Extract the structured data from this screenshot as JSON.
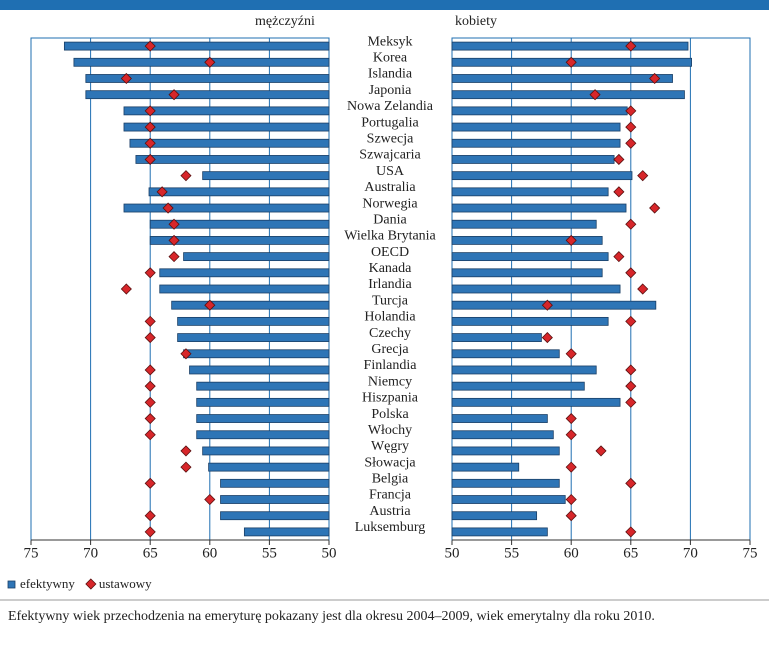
{
  "chart_data": {
    "type": "bar",
    "categories": [
      "Meksyk",
      "Korea",
      "Islandia",
      "Japonia",
      "Nowa Zelandia",
      "Portugalia",
      "Szwecja",
      "Szwajcaria",
      "USA",
      "Australia",
      "Norwegia",
      "Dania",
      "Wielka Brytania",
      "OECD",
      "Kanada",
      "Irlandia",
      "Turcja",
      "Holandia",
      "Czechy",
      "Grecja",
      "Finlandia",
      "Niemcy",
      "Hiszpania",
      "Polska",
      "Włochy",
      "Węgry",
      "Słowacja",
      "Belgia",
      "Francja",
      "Austria",
      "Luksemburg"
    ],
    "grid": true,
    "panels": [
      {
        "title": "mężczyźni",
        "xlim": [
          75,
          50
        ],
        "xticks": [
          75,
          70,
          65,
          60,
          55,
          50
        ],
        "series": [
          {
            "name": "efektywny",
            "color": "#2e75b6",
            "marker": "bar",
            "values": [
              72.2,
              71.4,
              70.4,
              70.4,
              67.2,
              67.2,
              66.7,
              66.2,
              60.6,
              65.1,
              67.2,
              65,
              65,
              62.2,
              64.2,
              64.2,
              63.2,
              62.7,
              62.7,
              62.2,
              61.7,
              61.1,
              61.1,
              61.1,
              61.1,
              60.6,
              60.1,
              59.1,
              59.1,
              59.1,
              57.1
            ]
          },
          {
            "name": "ustawowy",
            "color": "#d7262a",
            "marker": "diamond",
            "values": [
              65,
              60,
              67,
              63,
              65,
              65,
              65,
              65,
              62,
              64,
              63.5,
              63,
              63,
              63,
              65,
              67,
              60,
              65,
              65,
              62,
              65,
              65,
              65,
              65,
              65,
              62,
              62,
              65,
              60,
              65,
              65
            ]
          }
        ]
      },
      {
        "title": "kobiety",
        "xlim": [
          50,
          75
        ],
        "xticks": [
          50,
          55,
          60,
          65,
          70,
          75
        ],
        "series": [
          {
            "color": "#2e75b6",
            "marker": "bar",
            "values": [
              69.8,
              70.1,
              68.5,
              69.5,
              64.7,
              64.1,
              64.1,
              63.6,
              65.1,
              63.1,
              64.6,
              62.1,
              62.6,
              63.1,
              62.6,
              64.1,
              67.1,
              63.1,
              57.5,
              59,
              62.1,
              61.1,
              64.1,
              58,
              58.5,
              59,
              55.6,
              59,
              59.5,
              57.1,
              58
            ]
          },
          {
            "color": "#d7262a",
            "marker": "diamond",
            "values": [
              65,
              60,
              67,
              62,
              65,
              65,
              65,
              64,
              66,
              64,
              67,
              65,
              60,
              64,
              65,
              66,
              58,
              65,
              58,
              60,
              65,
              65,
              65,
              60,
              60,
              62.5,
              60,
              65,
              60,
              60,
              65
            ]
          }
        ]
      }
    ],
    "note": "Efektywny wiek przechodzenia na emeryturę pokazany jest dla okresu 2004–2009, wiek emerytalny dla roku 2010."
  }
}
